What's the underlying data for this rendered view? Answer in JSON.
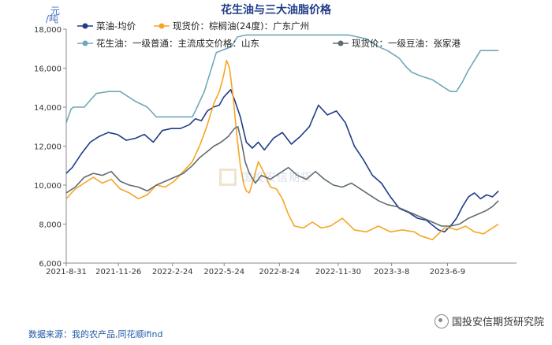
{
  "chart_data": {
    "type": "line",
    "title": "花生油与三大油脂价格",
    "unit": "元/吨",
    "ylim": [
      6000,
      18000
    ],
    "yticks": [
      6000,
      8000,
      10000,
      12000,
      14000,
      16000,
      18000
    ],
    "ytick_labels": [
      "6,000",
      "8,000",
      "10,000",
      "12,000",
      "14,000",
      "16,000",
      "18,000"
    ],
    "xlim": [
      0,
      750
    ],
    "xticks": [
      0,
      87,
      177,
      263,
      355,
      453,
      542,
      635
    ],
    "xtick_labels": [
      "2021-8-31",
      "2021-11-26",
      "2022-2-24",
      "2022-5-24",
      "2022-8-24",
      "2022-11-30",
      "2023-3-8",
      "2023-6-9"
    ],
    "x_unit": "days since 2021-08-31",
    "series": [
      {
        "name": "菜油-均价",
        "color": "#1f3c88",
        "x": [
          0,
          10,
          25,
          40,
          55,
          70,
          85,
          100,
          115,
          130,
          145,
          160,
          175,
          190,
          205,
          215,
          225,
          235,
          245,
          255,
          262,
          268,
          274,
          280,
          290,
          300,
          310,
          320,
          330,
          345,
          360,
          375,
          390,
          405,
          420,
          435,
          450,
          465,
          480,
          495,
          510,
          525,
          540,
          555,
          570,
          585,
          600,
          612,
          620,
          630,
          640,
          650,
          660,
          670,
          680,
          690,
          700,
          710,
          720
        ],
        "y": [
          10600,
          10900,
          11600,
          12200,
          12500,
          12700,
          12600,
          12300,
          12400,
          12600,
          12200,
          12800,
          12900,
          12900,
          13100,
          13400,
          13300,
          13800,
          14000,
          14100,
          14500,
          14700,
          14900,
          14400,
          13500,
          12200,
          11900,
          12200,
          11800,
          12400,
          12700,
          12100,
          12500,
          13000,
          14100,
          13600,
          13800,
          13200,
          12000,
          11300,
          10500,
          10100,
          9400,
          8800,
          8600,
          8300,
          8200,
          7900,
          7700,
          7600,
          7900,
          8300,
          8900,
          9400,
          9600,
          9300,
          9500,
          9400,
          9700
        ]
      },
      {
        "name": "现货价：棕榈油(24度)：广东广州",
        "color": "#f5a623",
        "x": [
          0,
          15,
          30,
          45,
          60,
          75,
          90,
          105,
          120,
          135,
          150,
          165,
          180,
          195,
          210,
          222,
          234,
          246,
          255,
          262,
          267,
          272,
          278,
          284,
          290,
          296,
          300,
          305,
          312,
          320,
          330,
          340,
          350,
          360,
          370,
          380,
          395,
          410,
          425,
          440,
          460,
          480,
          500,
          520,
          540,
          560,
          580,
          590,
          600,
          610,
          620,
          630,
          640,
          650,
          665,
          680,
          695,
          710,
          720
        ],
        "y": [
          9300,
          9800,
          10100,
          10400,
          10100,
          10300,
          9800,
          9600,
          9300,
          9500,
          10000,
          9900,
          10200,
          10700,
          11200,
          12000,
          13000,
          14200,
          14800,
          15600,
          16400,
          16000,
          14500,
          12600,
          11000,
          10000,
          9700,
          9600,
          10300,
          11200,
          10600,
          9900,
          9800,
          9300,
          8500,
          7900,
          7800,
          8100,
          7800,
          7900,
          8300,
          7700,
          7600,
          7900,
          7600,
          7700,
          7600,
          7400,
          7300,
          7200,
          7500,
          7800,
          7800,
          7700,
          7900,
          7600,
          7500,
          7800,
          8000
        ]
      },
      {
        "name": "花生油：一级普通：主流成交价格：山东",
        "color": "#6fa8b8",
        "x": [
          0,
          8,
          12,
          30,
          50,
          70,
          90,
          115,
          135,
          150,
          170,
          190,
          210,
          215,
          230,
          250,
          275,
          285,
          300,
          320,
          350,
          380,
          410,
          440,
          470,
          500,
          520,
          535,
          555,
          565,
          575,
          590,
          610,
          630,
          640,
          650,
          660,
          670,
          680,
          690,
          720
        ],
        "y": [
          13200,
          13900,
          14000,
          14000,
          14700,
          14800,
          14800,
          14300,
          14000,
          13500,
          13500,
          13500,
          13500,
          13800,
          14800,
          16800,
          17100,
          17600,
          17700,
          17700,
          17700,
          17700,
          17700,
          17700,
          17700,
          17500,
          17100,
          16900,
          16500,
          16100,
          15800,
          15600,
          15400,
          15000,
          14800,
          14800,
          15300,
          15900,
          16400,
          16900,
          16900
        ]
      },
      {
        "name": "现货价：一级豆油：张家港",
        "color": "#5f6b73",
        "x": [
          0,
          15,
          30,
          45,
          60,
          75,
          90,
          105,
          120,
          135,
          150,
          165,
          180,
          195,
          210,
          222,
          234,
          246,
          258,
          270,
          280,
          286,
          292,
          298,
          305,
          315,
          325,
          340,
          355,
          370,
          385,
          400,
          415,
          430,
          445,
          460,
          475,
          490,
          505,
          520,
          535,
          550,
          565,
          580,
          595,
          610,
          625,
          640,
          655,
          670,
          685,
          700,
          710,
          720
        ],
        "y": [
          9600,
          9900,
          10400,
          10600,
          10500,
          10700,
          10200,
          10000,
          9900,
          9700,
          10000,
          10200,
          10400,
          10600,
          11000,
          11400,
          11700,
          12000,
          12200,
          12500,
          12900,
          13000,
          12200,
          11200,
          10600,
          10100,
          10500,
          10300,
          10600,
          10900,
          10500,
          10300,
          10700,
          10300,
          10000,
          9900,
          10100,
          9800,
          9500,
          9200,
          9000,
          8900,
          8700,
          8500,
          8300,
          8100,
          7900,
          7900,
          8000,
          8300,
          8500,
          8700,
          8900,
          9200
        ]
      }
    ]
  },
  "source_text": "数据来源：我的农产品,同花顺ifind",
  "brand_text": "国投安信期货研究院",
  "watermark_text": "国投安信期货"
}
